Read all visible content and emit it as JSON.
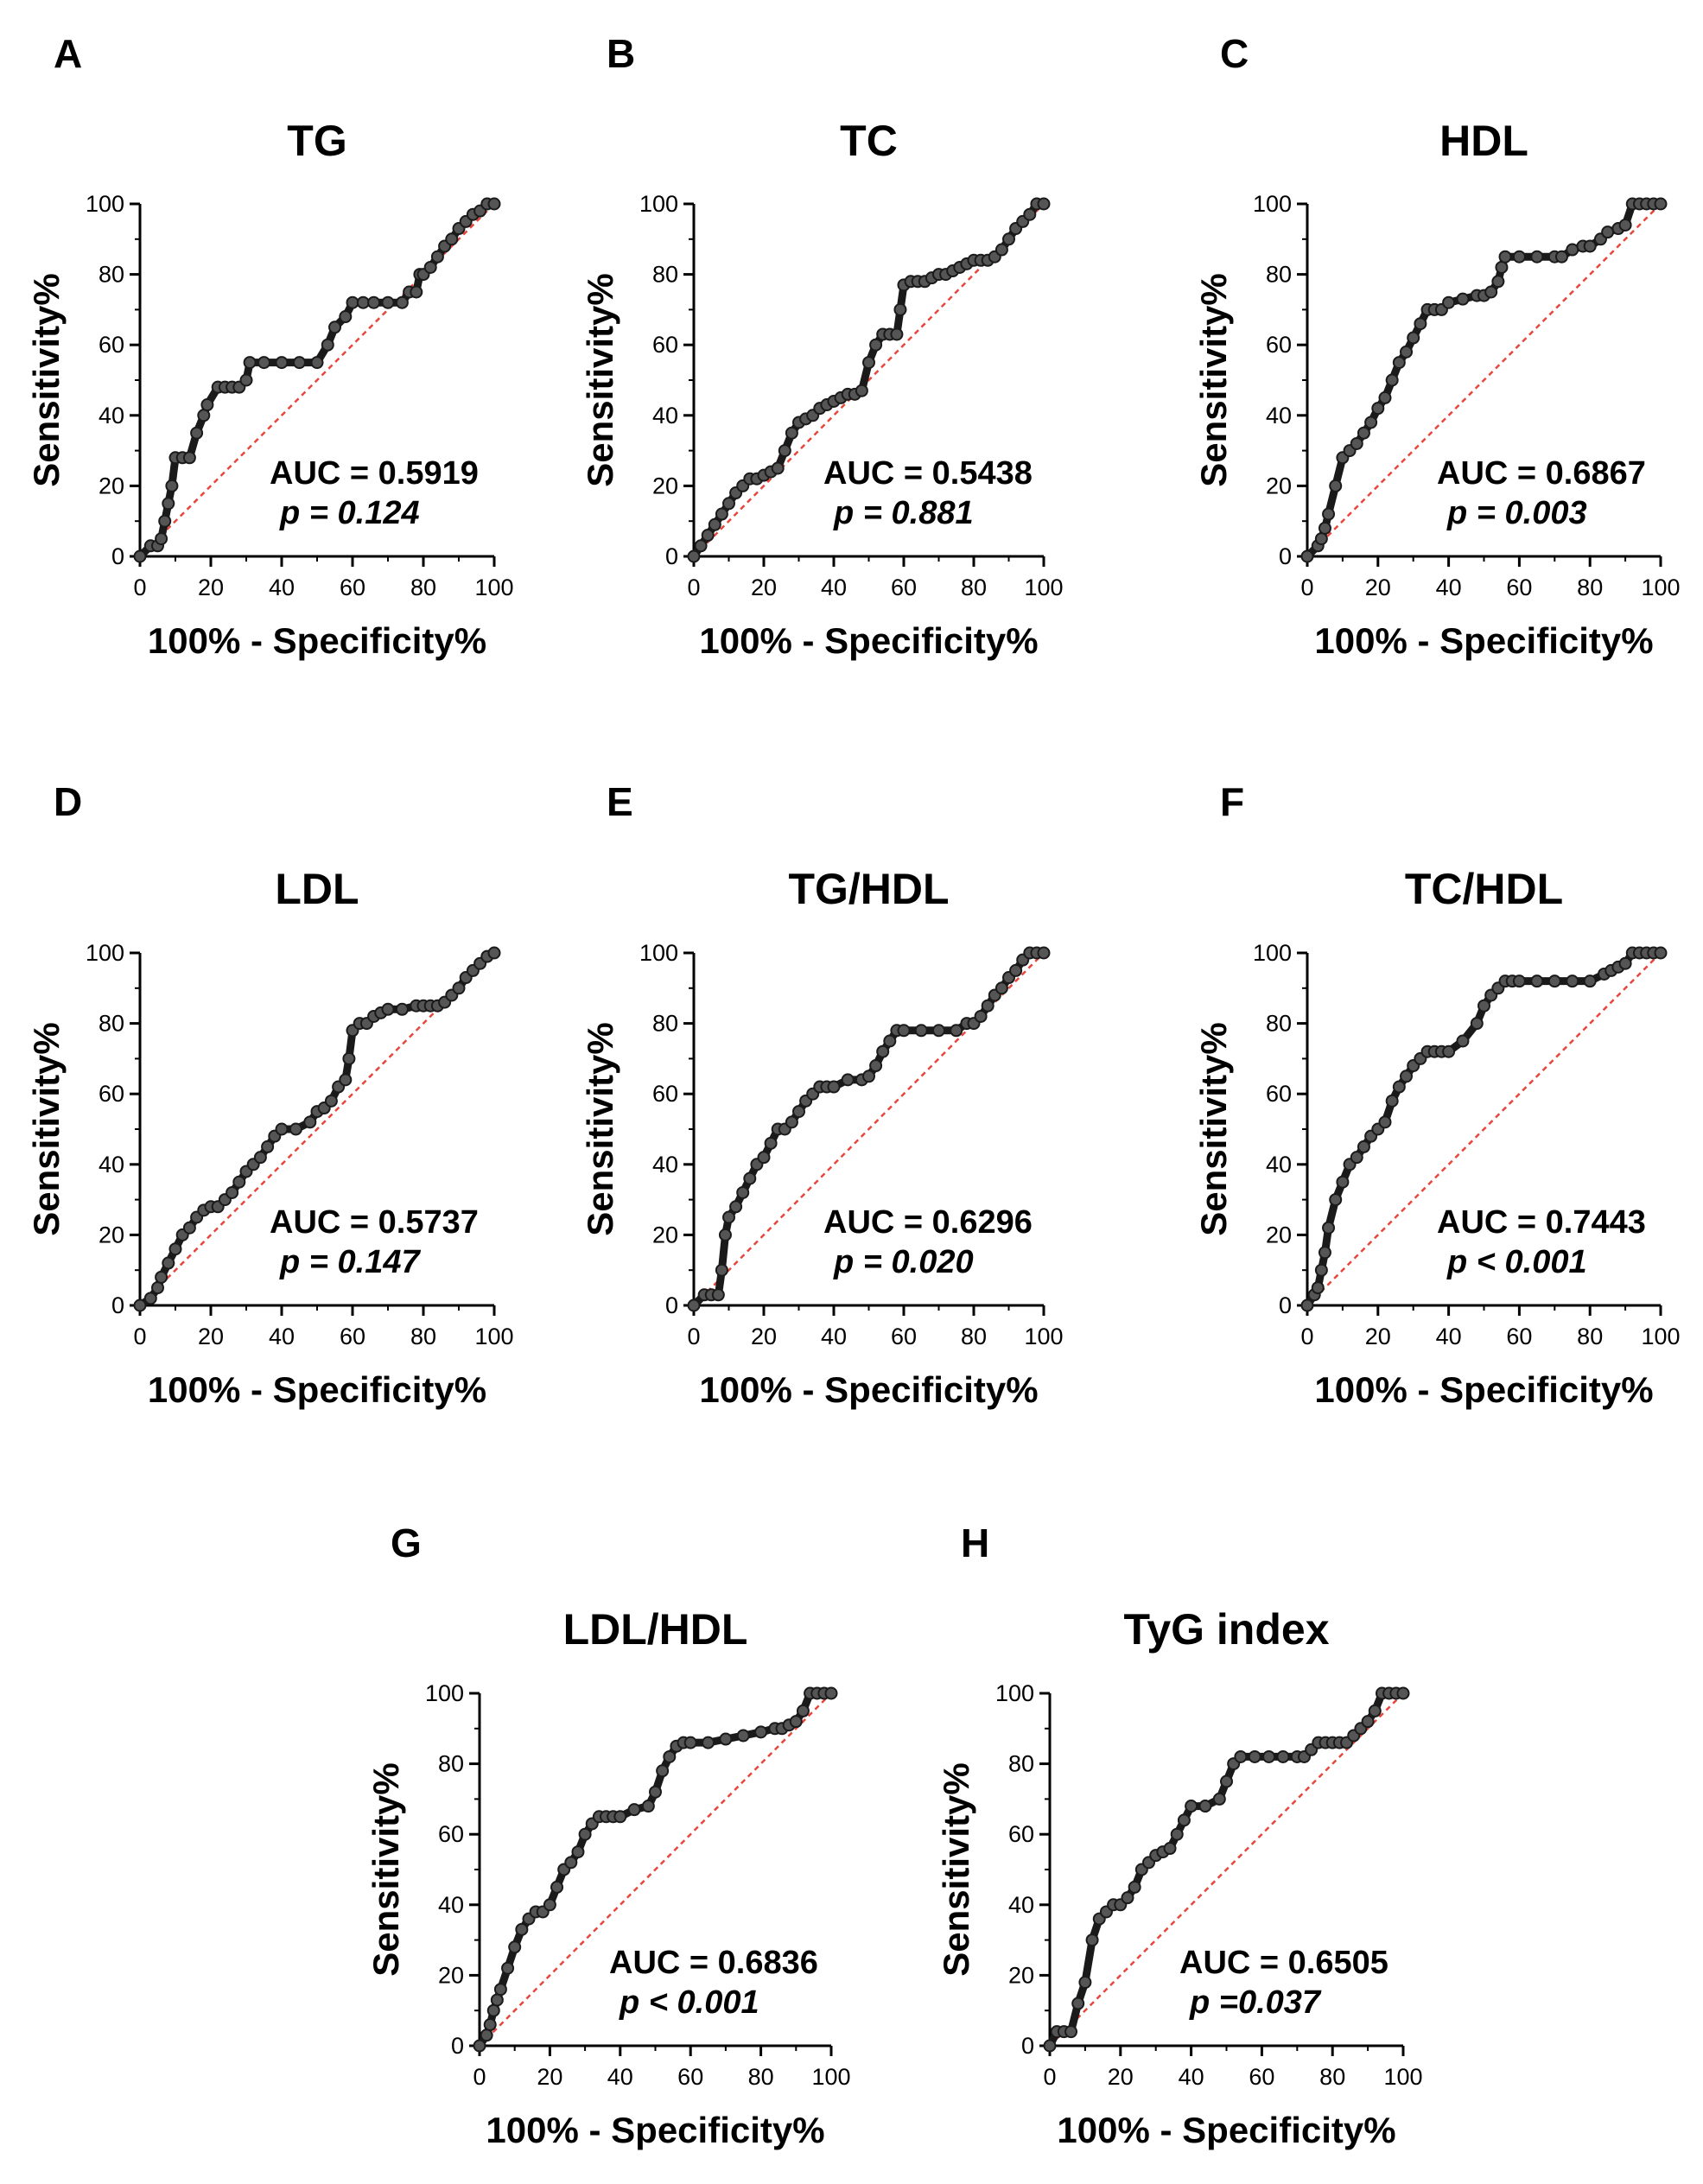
{
  "figure": {
    "background": "#ffffff",
    "curve_color": "#1a1a1a",
    "marker_color": "#555555",
    "reference_color": "#e8463c"
  },
  "chart_data": [
    {
      "panel": "A",
      "type": "line",
      "title": "TG",
      "xlabel": "100% - Specificity%",
      "ylabel": "Sensitivity%",
      "xlim": [
        0,
        100
      ],
      "ylim": [
        0,
        100
      ],
      "xticks": [
        "0",
        "20",
        "40",
        "60",
        "80",
        "100"
      ],
      "yticks": [
        "0",
        "20",
        "40",
        "60",
        "80",
        "100"
      ],
      "auc_label": "AUC = 0.5919",
      "p_label": "p = 0.124",
      "series": [
        {
          "name": "ROC",
          "x": [
            0,
            3,
            5,
            6,
            7,
            8,
            9,
            10,
            12,
            14,
            16,
            18,
            19,
            22,
            24,
            26,
            28,
            30,
            31,
            35,
            40,
            45,
            50,
            53,
            55,
            58,
            60,
            63,
            66,
            70,
            74,
            76,
            78,
            79,
            80,
            82,
            84,
            86,
            88,
            90,
            92,
            94,
            96,
            98,
            100
          ],
          "y": [
            0,
            3,
            3,
            5,
            10,
            15,
            20,
            28,
            28,
            28,
            35,
            40,
            43,
            48,
            48,
            48,
            48,
            50,
            55,
            55,
            55,
            55,
            55,
            60,
            65,
            68,
            72,
            72,
            72,
            72,
            72,
            75,
            75,
            80,
            80,
            82,
            85,
            88,
            90,
            93,
            95,
            97,
            98,
            100,
            100
          ]
        },
        {
          "name": "Reference",
          "x": [
            0,
            100
          ],
          "y": [
            0,
            100
          ]
        }
      ]
    },
    {
      "panel": "B",
      "type": "line",
      "title": "TC",
      "xlabel": "100% - Specificity%",
      "ylabel": "Sensitivity%",
      "xlim": [
        0,
        100
      ],
      "ylim": [
        0,
        100
      ],
      "xticks": [
        "0",
        "20",
        "40",
        "60",
        "80",
        "100"
      ],
      "yticks": [
        "0",
        "20",
        "40",
        "60",
        "80",
        "100"
      ],
      "auc_label": "AUC = 0.5438",
      "p_label": "p = 0.881",
      "series": [
        {
          "name": "ROC",
          "x": [
            0,
            2,
            4,
            6,
            8,
            10,
            12,
            14,
            16,
            18,
            20,
            22,
            24,
            26,
            28,
            30,
            32,
            34,
            36,
            38,
            40,
            42,
            44,
            46,
            48,
            50,
            52,
            54,
            56,
            58,
            59,
            60,
            62,
            64,
            66,
            68,
            70,
            72,
            74,
            76,
            78,
            80,
            82,
            84,
            86,
            88,
            90,
            92,
            94,
            96,
            98,
            100
          ],
          "y": [
            0,
            3,
            6,
            9,
            12,
            15,
            18,
            20,
            22,
            22,
            23,
            24,
            25,
            30,
            35,
            38,
            39,
            40,
            42,
            43,
            44,
            45,
            46,
            46,
            47,
            55,
            60,
            63,
            63,
            63,
            70,
            77,
            78,
            78,
            78,
            79,
            80,
            80,
            81,
            82,
            83,
            84,
            84,
            84,
            85,
            87,
            90,
            93,
            95,
            97,
            100,
            100
          ]
        },
        {
          "name": "Reference",
          "x": [
            0,
            100
          ],
          "y": [
            0,
            100
          ]
        }
      ]
    },
    {
      "panel": "C",
      "type": "line",
      "title": "HDL",
      "xlabel": "100% - Specificity%",
      "ylabel": "Sensitivity%",
      "xlim": [
        0,
        100
      ],
      "ylim": [
        0,
        100
      ],
      "xticks": [
        "0",
        "20",
        "40",
        "60",
        "80",
        "100"
      ],
      "yticks": [
        "0",
        "20",
        "40",
        "60",
        "80",
        "100"
      ],
      "auc_label": "AUC = 0.6867",
      "p_label": "p = 0.003",
      "series": [
        {
          "name": "ROC",
          "x": [
            0,
            3,
            4,
            5,
            6,
            8,
            10,
            12,
            14,
            16,
            18,
            20,
            22,
            24,
            26,
            28,
            30,
            32,
            34,
            36,
            38,
            40,
            44,
            48,
            50,
            52,
            54,
            55,
            56,
            60,
            65,
            70,
            72,
            75,
            78,
            80,
            83,
            85,
            88,
            90,
            92,
            94,
            96,
            98,
            100
          ],
          "y": [
            0,
            3,
            5,
            8,
            12,
            20,
            28,
            30,
            32,
            35,
            38,
            42,
            45,
            50,
            55,
            58,
            62,
            66,
            70,
            70,
            70,
            72,
            73,
            74,
            74,
            75,
            78,
            82,
            85,
            85,
            85,
            85,
            85,
            87,
            88,
            88,
            90,
            92,
            93,
            94,
            100,
            100,
            100,
            100,
            100
          ]
        },
        {
          "name": "Reference",
          "x": [
            0,
            100
          ],
          "y": [
            0,
            100
          ]
        }
      ]
    },
    {
      "panel": "D",
      "type": "line",
      "title": "LDL",
      "xlabel": "100% - Specificity%",
      "ylabel": "Sensitivity%",
      "xlim": [
        0,
        100
      ],
      "ylim": [
        0,
        100
      ],
      "xticks": [
        "0",
        "20",
        "40",
        "60",
        "80",
        "100"
      ],
      "yticks": [
        "0",
        "20",
        "40",
        "60",
        "80",
        "100"
      ],
      "auc_label": "AUC = 0.5737",
      "p_label": "p = 0.147",
      "series": [
        {
          "name": "ROC",
          "x": [
            0,
            3,
            5,
            6,
            8,
            10,
            12,
            14,
            16,
            18,
            20,
            22,
            24,
            26,
            28,
            30,
            32,
            34,
            36,
            38,
            40,
            44,
            48,
            50,
            52,
            54,
            56,
            58,
            59,
            60,
            62,
            64,
            66,
            68,
            70,
            74,
            78,
            80,
            82,
            84,
            86,
            88,
            90,
            92,
            94,
            96,
            98,
            100
          ],
          "y": [
            0,
            2,
            5,
            8,
            12,
            16,
            20,
            22,
            25,
            27,
            28,
            28,
            30,
            32,
            35,
            38,
            40,
            42,
            45,
            48,
            50,
            50,
            52,
            55,
            56,
            58,
            62,
            64,
            70,
            78,
            80,
            80,
            82,
            83,
            84,
            84,
            85,
            85,
            85,
            85,
            86,
            88,
            90,
            93,
            95,
            97,
            99,
            100
          ]
        },
        {
          "name": "Reference",
          "x": [
            0,
            100
          ],
          "y": [
            0,
            100
          ]
        }
      ]
    },
    {
      "panel": "E",
      "type": "line",
      "title": "TG/HDL",
      "xlabel": "100% - Specificity%",
      "ylabel": "Sensitivity%",
      "xlim": [
        0,
        100
      ],
      "ylim": [
        0,
        100
      ],
      "xticks": [
        "0",
        "20",
        "40",
        "60",
        "80",
        "100"
      ],
      "yticks": [
        "0",
        "20",
        "40",
        "60",
        "80",
        "100"
      ],
      "auc_label": "AUC = 0.6296",
      "p_label": "p = 0.020",
      "series": [
        {
          "name": "ROC",
          "x": [
            0,
            3,
            5,
            7,
            8,
            9,
            10,
            12,
            14,
            16,
            18,
            20,
            22,
            24,
            26,
            28,
            30,
            32,
            34,
            36,
            38,
            40,
            44,
            48,
            50,
            52,
            54,
            56,
            58,
            60,
            65,
            70,
            75,
            78,
            80,
            82,
            84,
            86,
            88,
            90,
            92,
            94,
            96,
            98,
            100
          ],
          "y": [
            0,
            3,
            3,
            3,
            10,
            20,
            25,
            28,
            32,
            36,
            40,
            42,
            46,
            50,
            50,
            52,
            55,
            58,
            60,
            62,
            62,
            62,
            64,
            64,
            65,
            68,
            72,
            75,
            78,
            78,
            78,
            78,
            78,
            80,
            80,
            82,
            85,
            88,
            90,
            93,
            95,
            98,
            100,
            100,
            100
          ]
        },
        {
          "name": "Reference",
          "x": [
            0,
            100
          ],
          "y": [
            0,
            100
          ]
        }
      ]
    },
    {
      "panel": "F",
      "type": "line",
      "title": "TC/HDL",
      "xlabel": "100% - Specificity%",
      "ylabel": "Sensitivity%",
      "xlim": [
        0,
        100
      ],
      "ylim": [
        0,
        100
      ],
      "xticks": [
        "0",
        "20",
        "40",
        "60",
        "80",
        "100"
      ],
      "yticks": [
        "0",
        "20",
        "40",
        "60",
        "80",
        "100"
      ],
      "auc_label": "AUC = 0.7443",
      "p_label": "p < 0.001",
      "series": [
        {
          "name": "ROC",
          "x": [
            0,
            2,
            3,
            4,
            5,
            6,
            8,
            10,
            12,
            14,
            16,
            18,
            20,
            22,
            24,
            26,
            28,
            30,
            32,
            34,
            36,
            38,
            40,
            44,
            48,
            50,
            52,
            54,
            56,
            58,
            60,
            65,
            70,
            75,
            80,
            84,
            86,
            88,
            90,
            92,
            94,
            96,
            98,
            100
          ],
          "y": [
            0,
            3,
            5,
            10,
            15,
            22,
            30,
            35,
            40,
            42,
            45,
            48,
            50,
            52,
            58,
            62,
            65,
            68,
            70,
            72,
            72,
            72,
            72,
            75,
            80,
            85,
            88,
            90,
            92,
            92,
            92,
            92,
            92,
            92,
            92,
            94,
            95,
            96,
            97,
            100,
            100,
            100,
            100,
            100
          ]
        },
        {
          "name": "Reference",
          "x": [
            0,
            100
          ],
          "y": [
            0,
            100
          ]
        }
      ]
    },
    {
      "panel": "G",
      "type": "line",
      "title": "LDL/HDL",
      "xlabel": "100% - Specificity%",
      "ylabel": "Sensitivity%",
      "xlim": [
        0,
        100
      ],
      "ylim": [
        0,
        100
      ],
      "xticks": [
        "0",
        "20",
        "40",
        "60",
        "80",
        "100"
      ],
      "yticks": [
        "0",
        "20",
        "40",
        "60",
        "80",
        "100"
      ],
      "auc_label": "AUC = 0.6836",
      "p_label": "p < 0.001",
      "series": [
        {
          "name": "ROC",
          "x": [
            0,
            2,
            3,
            4,
            5,
            6,
            8,
            10,
            12,
            14,
            16,
            18,
            20,
            22,
            24,
            26,
            28,
            30,
            32,
            34,
            36,
            38,
            40,
            44,
            48,
            50,
            52,
            54,
            56,
            58,
            60,
            65,
            70,
            75,
            80,
            84,
            86,
            88,
            90,
            92,
            94,
            96,
            98,
            100
          ],
          "y": [
            0,
            3,
            6,
            10,
            13,
            16,
            22,
            28,
            33,
            36,
            38,
            38,
            40,
            45,
            50,
            52,
            55,
            60,
            63,
            65,
            65,
            65,
            65,
            67,
            68,
            72,
            78,
            82,
            85,
            86,
            86,
            86,
            87,
            88,
            89,
            90,
            90,
            91,
            92,
            95,
            100,
            100,
            100,
            100
          ]
        },
        {
          "name": "Reference",
          "x": [
            0,
            100
          ],
          "y": [
            0,
            100
          ]
        }
      ]
    },
    {
      "panel": "H",
      "type": "line",
      "title": "TyG index",
      "xlabel": "100% - Specificity%",
      "ylabel": "Sensitivity%",
      "xlim": [
        0,
        100
      ],
      "ylim": [
        0,
        100
      ],
      "xticks": [
        "0",
        "20",
        "40",
        "60",
        "80",
        "100"
      ],
      "yticks": [
        "0",
        "20",
        "40",
        "60",
        "80",
        "100"
      ],
      "auc_label": "AUC = 0.6505",
      "p_label": "p =0.037",
      "series": [
        {
          "name": "ROC",
          "x": [
            0,
            2,
            4,
            6,
            8,
            10,
            12,
            14,
            16,
            18,
            20,
            22,
            24,
            26,
            28,
            30,
            32,
            34,
            36,
            38,
            40,
            44,
            48,
            50,
            52,
            54,
            58,
            62,
            66,
            70,
            72,
            74,
            76,
            78,
            80,
            82,
            84,
            86,
            88,
            90,
            92,
            94,
            96,
            98,
            100
          ],
          "y": [
            0,
            4,
            4,
            4,
            12,
            18,
            30,
            36,
            38,
            40,
            40,
            42,
            45,
            50,
            52,
            54,
            55,
            56,
            60,
            64,
            68,
            68,
            70,
            75,
            80,
            82,
            82,
            82,
            82,
            82,
            82,
            84,
            86,
            86,
            86,
            86,
            86,
            88,
            90,
            92,
            95,
            100,
            100,
            100,
            100
          ]
        },
        {
          "name": "Reference",
          "x": [
            0,
            100
          ],
          "y": [
            0,
            100
          ]
        }
      ]
    }
  ]
}
